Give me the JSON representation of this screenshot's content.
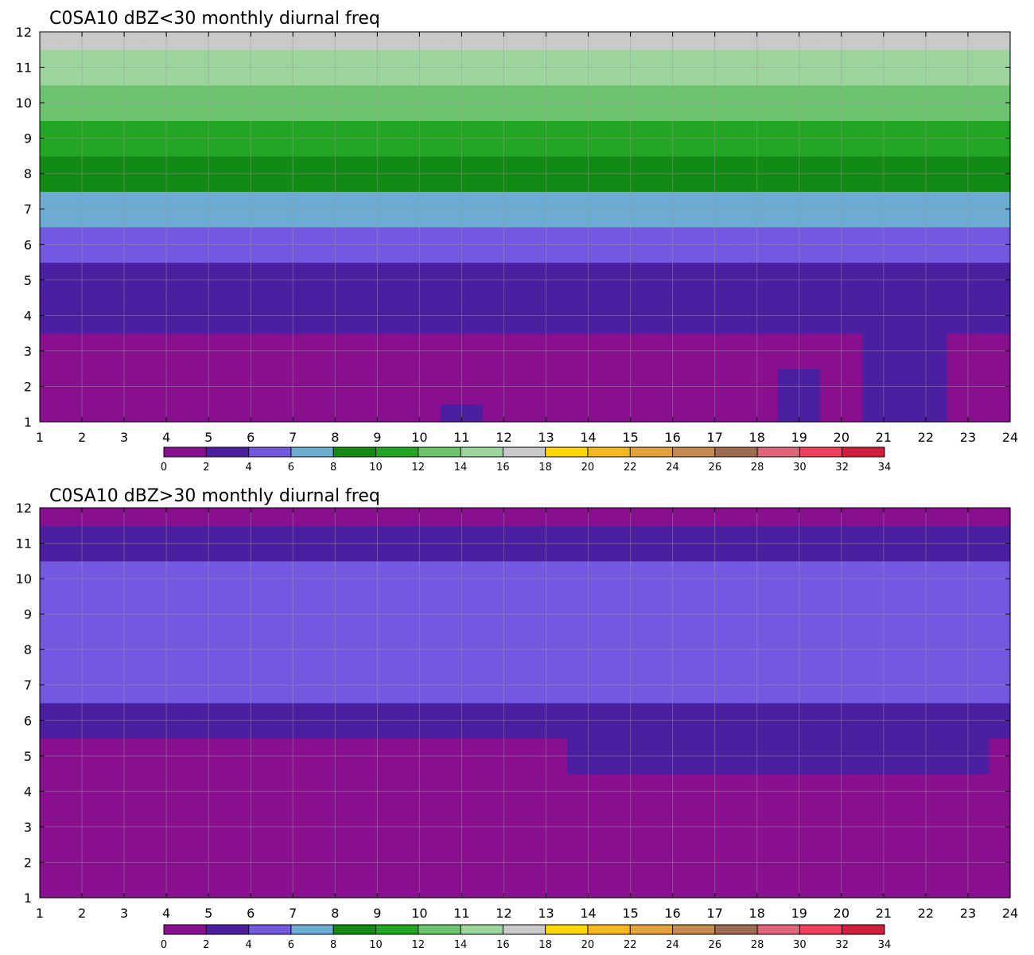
{
  "chart_data": [
    {
      "type": "heatmap",
      "title": "C0SA10 dBZ<30 monthly diurnal freq",
      "xlabel": "",
      "ylabel": "",
      "x": [
        1,
        2,
        3,
        4,
        5,
        6,
        7,
        8,
        9,
        10,
        11,
        12,
        13,
        14,
        15,
        16,
        17,
        18,
        19,
        20,
        21,
        22,
        23,
        24
      ],
      "y": [
        1,
        2,
        3,
        4,
        5,
        6,
        7,
        8,
        9,
        10,
        11,
        12
      ],
      "xlim": [
        1,
        24
      ],
      "ylim": [
        1,
        12
      ],
      "z": [
        [
          1,
          1,
          0,
          0,
          0,
          0,
          1,
          0,
          1,
          1,
          2,
          1,
          1,
          1,
          1,
          1,
          1,
          1,
          3,
          1,
          2,
          2,
          1,
          1
        ],
        [
          0,
          1,
          1,
          1,
          1,
          1,
          1,
          1,
          1,
          1,
          1,
          1,
          1,
          1,
          1,
          1,
          1,
          1,
          3,
          1,
          2,
          3,
          1,
          1
        ],
        [
          1,
          1,
          1,
          1,
          1,
          1,
          1,
          1,
          1,
          1,
          1,
          1,
          1,
          1,
          1,
          1,
          1,
          1,
          1,
          1,
          2,
          3,
          1,
          1
        ],
        [
          3,
          3,
          3,
          3,
          3,
          3,
          3,
          3,
          3,
          3,
          3,
          3,
          3,
          3,
          3,
          3,
          3,
          3,
          3,
          3,
          3,
          3,
          3,
          3
        ],
        [
          3,
          3,
          3,
          3,
          3,
          3,
          3,
          3,
          3,
          3,
          3,
          3,
          3,
          3,
          3,
          3,
          3,
          3,
          3,
          3,
          3,
          3,
          3,
          3
        ],
        [
          5,
          5,
          5,
          5,
          5,
          5,
          5,
          5,
          5,
          5,
          5,
          5,
          5,
          5,
          5,
          5,
          5,
          5,
          5,
          5,
          5,
          5,
          5,
          5
        ],
        [
          7,
          7,
          7,
          7,
          7,
          7,
          7,
          7,
          7,
          7,
          7,
          7,
          7,
          7,
          7,
          7,
          7,
          7,
          7,
          7,
          7,
          7,
          7,
          7
        ],
        [
          9,
          9,
          9,
          9,
          9,
          9,
          9,
          9,
          9,
          9,
          9,
          9,
          9,
          9,
          9,
          9,
          9,
          9,
          9,
          9,
          9,
          9,
          9,
          9
        ],
        [
          11,
          11,
          11,
          11,
          11,
          11,
          11,
          11,
          11,
          11,
          11,
          11,
          11,
          11,
          11,
          11,
          11,
          11,
          11,
          11,
          11,
          11,
          11,
          11
        ],
        [
          13,
          13,
          13,
          13,
          13,
          13,
          13,
          13,
          13,
          13,
          13,
          13,
          13,
          13,
          13,
          13,
          13,
          13,
          13,
          13,
          13,
          13,
          13,
          13
        ],
        [
          15,
          15,
          15,
          15,
          15,
          15,
          15,
          15,
          15,
          15,
          15,
          15,
          15,
          15,
          15,
          15,
          15,
          15,
          15,
          15,
          15,
          15,
          15,
          15
        ],
        [
          17,
          17,
          17,
          17,
          17,
          17,
          17,
          17,
          17,
          17,
          17,
          17,
          17,
          17,
          17,
          17,
          17,
          17,
          17,
          17,
          17,
          17,
          17,
          17
        ]
      ],
      "colorbar": {
        "levels": [
          0,
          2,
          4,
          6,
          8,
          10,
          12,
          14,
          16,
          18,
          20,
          22,
          24,
          26,
          28,
          30,
          32,
          34
        ],
        "colors": [
          "#88108f",
          "#4a1fa0",
          "#7359e0",
          "#6cacd0",
          "#138a13",
          "#23a623",
          "#6ec46e",
          "#9cd59c",
          "#c9c9c9",
          "#ffd700",
          "#f7b81f",
          "#e2a43a",
          "#c58a50",
          "#9c6a50",
          "#e0637a",
          "#f0405f",
          "#d01f3c"
        ]
      }
    },
    {
      "type": "heatmap",
      "title": "C0SA10 dBZ>30 monthly diurnal freq",
      "xlabel": "",
      "ylabel": "",
      "x": [
        1,
        2,
        3,
        4,
        5,
        6,
        7,
        8,
        9,
        10,
        11,
        12,
        13,
        14,
        15,
        16,
        17,
        18,
        19,
        20,
        21,
        22,
        23,
        24
      ],
      "y": [
        1,
        2,
        3,
        4,
        5,
        6,
        7,
        8,
        9,
        10,
        11,
        12
      ],
      "xlim": [
        1,
        24
      ],
      "ylim": [
        1,
        12
      ],
      "z": [
        [
          0,
          0,
          0,
          0,
          0,
          0,
          0,
          0,
          0,
          0,
          0,
          0,
          0,
          0,
          0,
          0,
          0,
          0,
          0,
          0,
          0,
          0,
          0,
          0
        ],
        [
          0,
          0,
          0,
          0,
          0,
          0,
          0,
          0,
          0,
          0,
          0,
          0,
          0,
          0,
          0,
          0,
          0,
          0,
          0,
          0,
          0,
          0,
          0,
          0
        ],
        [
          0,
          0,
          0,
          0,
          0,
          0,
          0,
          0,
          0,
          0,
          0,
          0,
          0,
          0,
          0,
          0,
          0,
          0,
          0,
          0,
          0,
          0,
          0,
          0
        ],
        [
          0,
          1,
          1,
          0,
          0,
          0,
          0,
          0,
          1,
          0,
          0,
          0,
          0,
          0,
          1,
          1,
          1,
          1,
          1,
          1,
          1,
          0,
          0,
          1
        ],
        [
          1,
          1,
          1,
          1,
          1,
          1,
          1,
          1,
          1,
          1,
          1,
          1,
          1,
          2,
          2,
          3,
          3,
          2,
          2,
          2,
          2,
          2,
          2,
          1
        ],
        [
          3,
          3,
          3,
          3,
          3,
          3,
          3,
          3,
          3,
          3,
          3,
          3,
          3,
          3,
          3,
          3,
          3,
          3,
          3,
          3,
          3,
          3,
          3,
          3
        ],
        [
          5,
          5,
          5,
          5,
          5,
          5,
          5,
          5,
          5,
          5,
          5,
          5,
          5,
          5,
          5,
          5,
          5,
          5,
          5,
          5,
          5,
          5,
          5,
          5
        ],
        [
          5,
          5,
          5,
          5,
          5,
          5,
          5,
          5,
          5,
          5,
          5,
          5,
          5,
          5,
          5,
          5,
          5,
          5,
          5,
          5,
          5,
          5,
          5,
          5
        ],
        [
          5,
          5,
          5,
          5,
          5,
          5,
          5,
          5,
          5,
          5,
          5,
          5,
          5,
          5,
          5,
          5,
          5,
          5,
          5,
          5,
          5,
          5,
          5,
          5
        ],
        [
          5,
          5,
          5,
          5,
          5,
          5,
          5,
          5,
          5,
          5,
          5,
          5,
          5,
          5,
          5,
          5,
          5,
          5,
          5,
          5,
          5,
          5,
          5,
          5
        ],
        [
          3,
          3,
          3,
          3,
          3,
          3,
          3,
          3,
          3,
          3,
          3,
          3,
          3,
          3,
          3,
          3,
          3,
          3,
          3,
          3,
          3,
          3,
          3,
          3
        ],
        [
          1,
          1,
          1,
          1,
          1,
          1,
          1,
          1,
          1,
          1,
          1,
          1,
          1,
          1,
          1,
          1,
          1,
          1,
          1,
          1,
          1,
          1,
          1,
          1
        ]
      ],
      "colorbar": {
        "levels": [
          0,
          2,
          4,
          6,
          8,
          10,
          12,
          14,
          16,
          18,
          20,
          22,
          24,
          26,
          28,
          30,
          32,
          34
        ],
        "colors": [
          "#88108f",
          "#4a1fa0",
          "#7359e0",
          "#6cacd0",
          "#138a13",
          "#23a623",
          "#6ec46e",
          "#9cd59c",
          "#c9c9c9",
          "#ffd700",
          "#f7b81f",
          "#e2a43a",
          "#c58a50",
          "#9c6a50",
          "#e0637a",
          "#f0405f",
          "#d01f3c"
        ]
      }
    }
  ]
}
